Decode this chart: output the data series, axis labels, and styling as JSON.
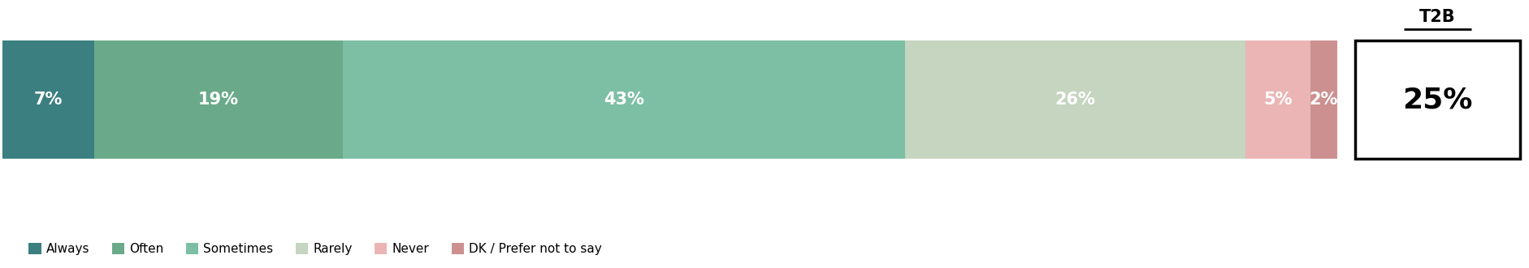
{
  "categories": [
    "Always",
    "Often",
    "Sometimes",
    "Rarely",
    "Never",
    "DK / Prefer not to say"
  ],
  "values": [
    7,
    19,
    43,
    26,
    5,
    2
  ],
  "colors": [
    "#3b7f80",
    "#6aaa8a",
    "#7dbfa5",
    "#c5d5bf",
    "#ebb5b5",
    "#cc9090"
  ],
  "labels": [
    "7%",
    "19%",
    "43%",
    "26%",
    "5%",
    "2%"
  ],
  "t2b_label": "T2B",
  "t2b_value": "25%",
  "bg_color": "#ffffff",
  "label_color": "#ffffff",
  "t2b_color": "#000000",
  "legend_colors": [
    "#3b7f80",
    "#6aaa8a",
    "#7dbfa5",
    "#c5d5bf",
    "#ebb5b5",
    "#cc9090"
  ],
  "label_fontsize": 15,
  "legend_fontsize": 11,
  "t2b_fontsize": 26,
  "t2b_label_fontsize": 15
}
